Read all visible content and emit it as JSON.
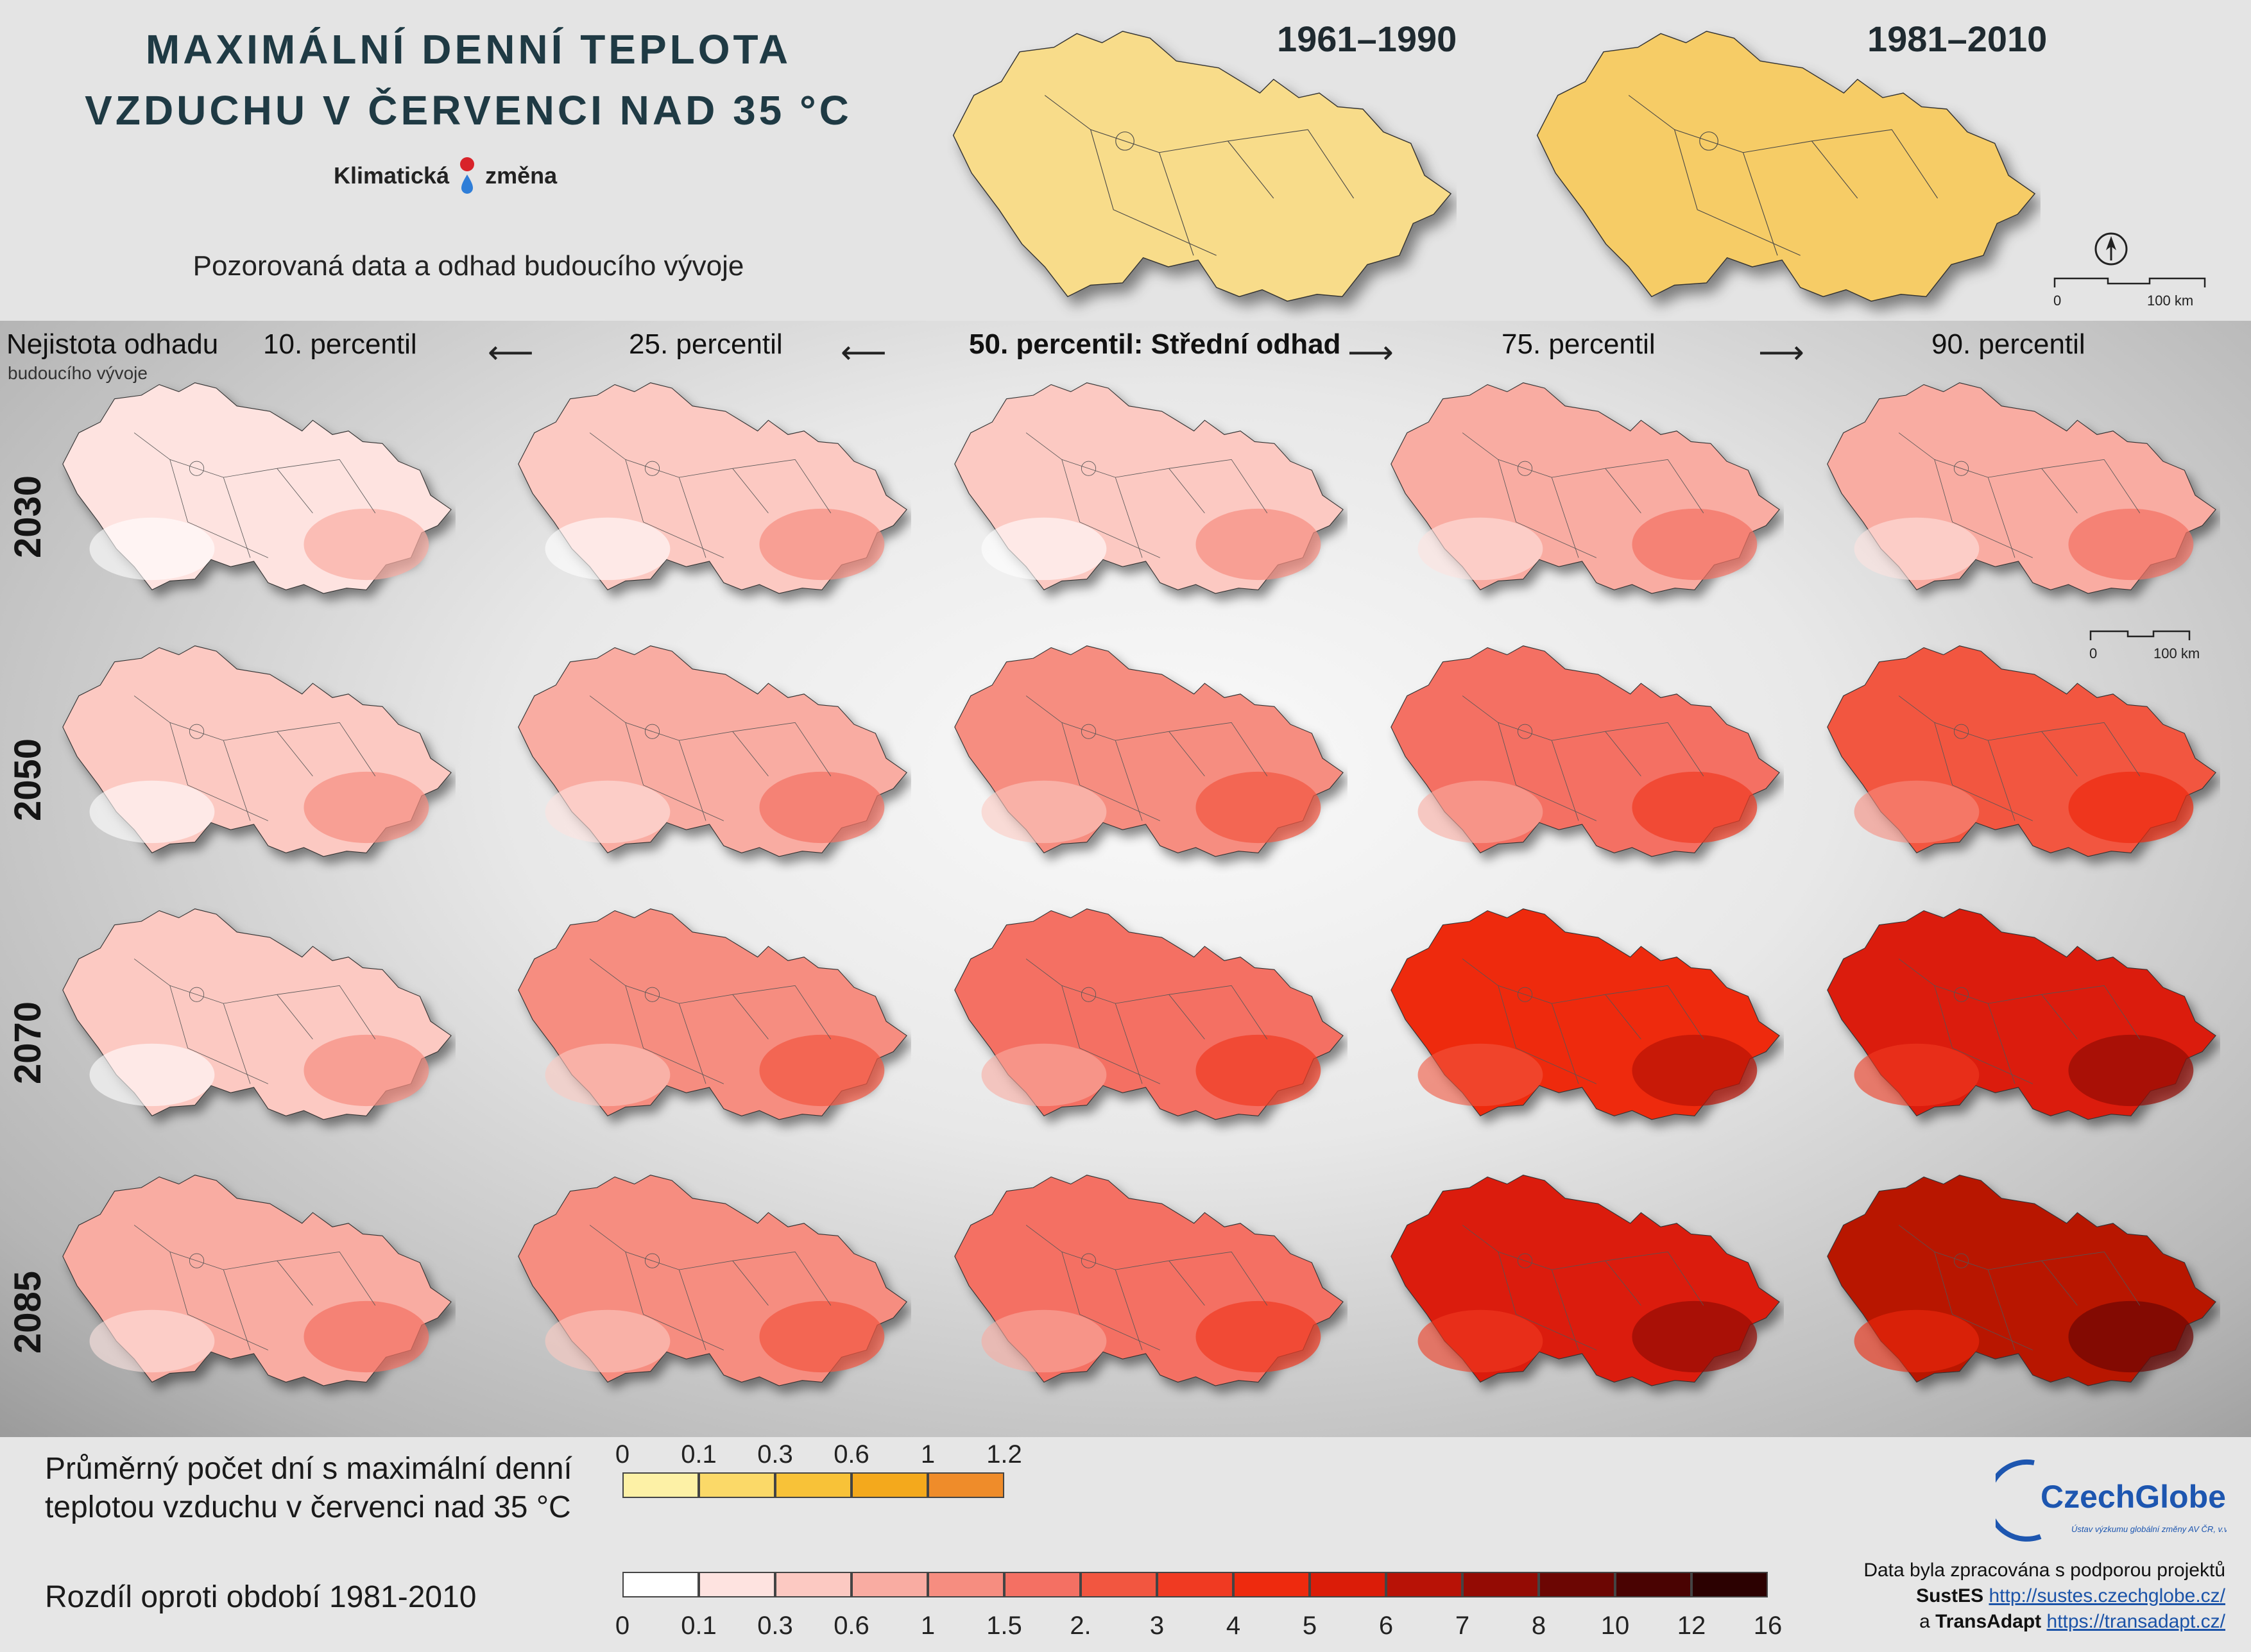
{
  "title_line1": "MAXIMÁLNÍ DENNÍ TEPLOTA",
  "title_line2": "VZDUCHU V ČERVENCI NAD 35 °C",
  "brand": {
    "left": "Klimatická",
    "right": "změna"
  },
  "subtitle": "Pozorovaná data a odhad budoucího vývoje",
  "observed_periods": [
    "1961–1990",
    "1981–2010"
  ],
  "scale": {
    "start": "0",
    "end": "100 km"
  },
  "north_symbol": "↑",
  "uncertainty_label": {
    "line1": "Nejistota odhadu",
    "line2": "budoucího vývoje"
  },
  "columns": [
    "10. percentil",
    "25. percentil",
    "50. percentil: Střední odhad",
    "75. percentil",
    "90. percentil"
  ],
  "arrows": [
    "⟵",
    "⟵",
    "⟶",
    "⟶"
  ],
  "years": [
    "2030",
    "2050",
    "2070",
    "2085"
  ],
  "map_intensity_levels": [
    [
      1,
      2,
      2,
      3,
      3
    ],
    [
      2,
      3,
      4,
      5,
      6
    ],
    [
      2,
      4,
      5,
      8,
      9
    ],
    [
      3,
      4,
      5,
      9,
      10
    ]
  ],
  "observed_colors": [
    "#f8dc8a",
    "#f6cc66"
  ],
  "legend_observed": {
    "label_line1": "Průměrný počet dní s maximální denní",
    "label_line2": "teplotou vzduchu v červenci nad 35 °C",
    "ticks": [
      "0",
      "0.1",
      "0.3",
      "0.6",
      "1",
      "1.2"
    ],
    "colors": [
      "#fdf1a6",
      "#fbd968",
      "#f8c238",
      "#f4a91c",
      "#ef8c2a"
    ]
  },
  "legend_difference": {
    "label": "Rozdíl oproti období 1981-2010",
    "ticks": [
      "0",
      "0.1",
      "0.3",
      "0.6",
      "1",
      "1.5",
      "2.",
      "3",
      "4",
      "5",
      "6",
      "7",
      "8",
      "10",
      "12",
      "16"
    ],
    "colors": [
      "#ffffff",
      "#fee3e0",
      "#fcc9c2",
      "#f9aca2",
      "#f68d80",
      "#f47063",
      "#f25640",
      "#f03a22",
      "#ee2a0e",
      "#db1c08",
      "#b81206",
      "#940b04",
      "#6c0603",
      "#4a0302",
      "#2c0101"
    ]
  },
  "logo": {
    "name": "CzechGlobe",
    "tagline": "Ústav výzkumu globální změny AV ČR, v.v.i."
  },
  "credit": {
    "line1": "Data byla zpracována s podporou projektů",
    "p1_name": "SustES",
    "p1_url": "http://sustes.czechglobe.cz/",
    "and": "a",
    "p2_name": "TransAdapt",
    "p2_url": "https://transadapt.cz/"
  }
}
